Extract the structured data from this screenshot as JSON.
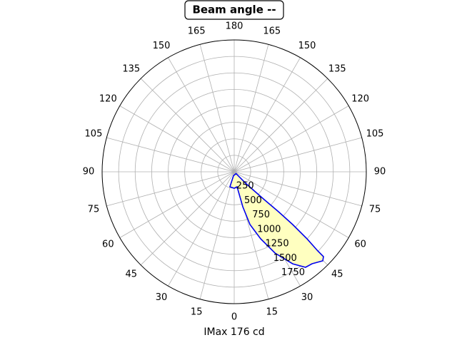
{
  "chart_data": {
    "type": "polar",
    "title": "Beam angle --",
    "x_label": "IMax 176 cd",
    "xticks": [
      0,
      15,
      30,
      45,
      60,
      75,
      90,
      105,
      120,
      135,
      150,
      165,
      180,
      {
        "value": 195,
        "label": "165"
      },
      {
        "value": 210,
        "label": "150"
      },
      {
        "value": 225,
        "label": "135"
      },
      {
        "value": 240,
        "label": "120"
      },
      {
        "value": 255,
        "label": "105"
      },
      {
        "value": 270,
        "label": "90"
      },
      {
        "value": 285,
        "label": "75"
      },
      {
        "value": 300,
        "label": "60"
      },
      {
        "value": 315,
        "label": "45"
      },
      {
        "value": 330,
        "label": "30"
      },
      {
        "value": 345,
        "label": "15"
      }
    ],
    "ylim": [
      0,
      2000
    ],
    "yticks": [
      250,
      500,
      750,
      1000,
      1250,
      1500,
      1750
    ],
    "grid": true,
    "series": [
      {
        "color": "#0000ee",
        "fill": "#ffffc0",
        "x": [
          350,
          344,
          0,
          10.8,
          13.8,
          16.6,
          21.5,
          26.6,
          32.4,
          36.7,
          40.2,
          44.8,
          46.4,
          46.5,
          47.3,
          47.9,
          47.9,
          47.1,
          45,
          45
        ],
        "values": [
          60,
          236,
          250,
          231,
          545,
          835,
          1092,
          1378,
          1653,
          1807,
          1826,
          1903,
          1866,
          1743,
          1500,
          1194,
          903,
          620,
          260,
          40
        ]
      }
    ]
  }
}
